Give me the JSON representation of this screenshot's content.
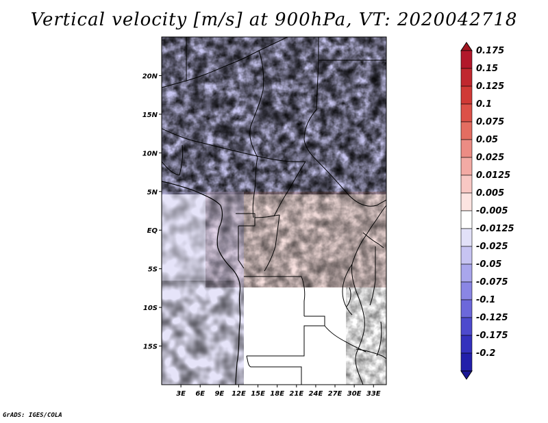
{
  "figure": {
    "title": "Vertical velocity [m/s] at 900hPa, VT: 2020042718",
    "credit": "GrADS: IGES/COLA"
  },
  "map": {
    "lon_range_deg": [
      0,
      35
    ],
    "lat_range_deg": [
      -20,
      25
    ],
    "lat_ticks": [
      {
        "value": 20,
        "label": "20N"
      },
      {
        "value": 15,
        "label": "15N"
      },
      {
        "value": 10,
        "label": "10N"
      },
      {
        "value": 5,
        "label": "5N"
      },
      {
        "value": 0,
        "label": "EQ"
      },
      {
        "value": -5,
        "label": "5S"
      },
      {
        "value": -10,
        "label": "10S"
      },
      {
        "value": -15,
        "label": "15S"
      }
    ],
    "lon_ticks": [
      {
        "value": 3,
        "label": "3E"
      },
      {
        "value": 6,
        "label": "6E"
      },
      {
        "value": 9,
        "label": "9E"
      },
      {
        "value": 12,
        "label": "12E"
      },
      {
        "value": 15,
        "label": "15E"
      },
      {
        "value": 18,
        "label": "18E"
      },
      {
        "value": 21,
        "label": "21E"
      },
      {
        "value": 24,
        "label": "24E"
      },
      {
        "value": 27,
        "label": "27E"
      },
      {
        "value": 30,
        "label": "30E"
      },
      {
        "value": 33,
        "label": "33E"
      }
    ]
  },
  "colorbar": {
    "levels": [
      {
        "label": "0.175",
        "color": "#b2182b"
      },
      {
        "label": "0.15",
        "color": "#c0282f"
      },
      {
        "label": "0.125",
        "color": "#d03a36"
      },
      {
        "label": "0.1",
        "color": "#dc5148"
      },
      {
        "label": "0.075",
        "color": "#e46d61"
      },
      {
        "label": "0.05",
        "color": "#ec8c84"
      },
      {
        "label": "0.025",
        "color": "#f3aaa4"
      },
      {
        "label": "0.0125",
        "color": "#f8c8c4"
      },
      {
        "label": "0.005",
        "color": "#fce4e1"
      },
      {
        "label": "-0.005",
        "color": "#ffffff"
      },
      {
        "label": "-0.0125",
        "color": "#e2e1f8"
      },
      {
        "label": "-0.025",
        "color": "#c7c4f2"
      },
      {
        "label": "-0.05",
        "color": "#a9a6ec"
      },
      {
        "label": "-0.075",
        "color": "#8a86e4"
      },
      {
        "label": "-0.1",
        "color": "#6c68da"
      },
      {
        "label": "-0.125",
        "color": "#4d4acd"
      },
      {
        "label": "-0.175",
        "color": "#3431bd"
      },
      {
        "label": "-0.2",
        "color": "#221faa"
      }
    ],
    "top_cap_color": "#a11722",
    "bottom_cap_color": "#1b1896"
  }
}
